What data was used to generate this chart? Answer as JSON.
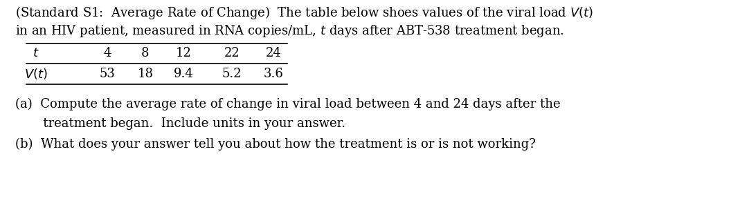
{
  "bg_color": "#ffffff",
  "text_color": "#000000",
  "intro_line1": "(Standard S1:  Average Rate of Change)  The table below shoes values of the viral load $V(t)$",
  "intro_line2": "in an HIV patient, measured in RNA copies/mL, $t$ days after ABT-538 treatment began.",
  "table_headers": [
    "$t$",
    "4",
    "8",
    "12",
    "22",
    "24"
  ],
  "table_row2_label": "$V(t)$",
  "table_row2_values": [
    "53",
    "18",
    "9.4",
    "5.2",
    "3.6"
  ],
  "part_a_line1": "(a)  Compute the average rate of change in viral load between 4 and 24 days after the",
  "part_a_line2": "       treatment began.  Include units in your answer.",
  "part_b": "(b)  What does your answer tell you about how the treatment is or is not working?",
  "font_size": 13.0,
  "font_family": "DejaVu Serif",
  "fig_width": 10.82,
  "fig_height": 2.94,
  "dpi": 100
}
